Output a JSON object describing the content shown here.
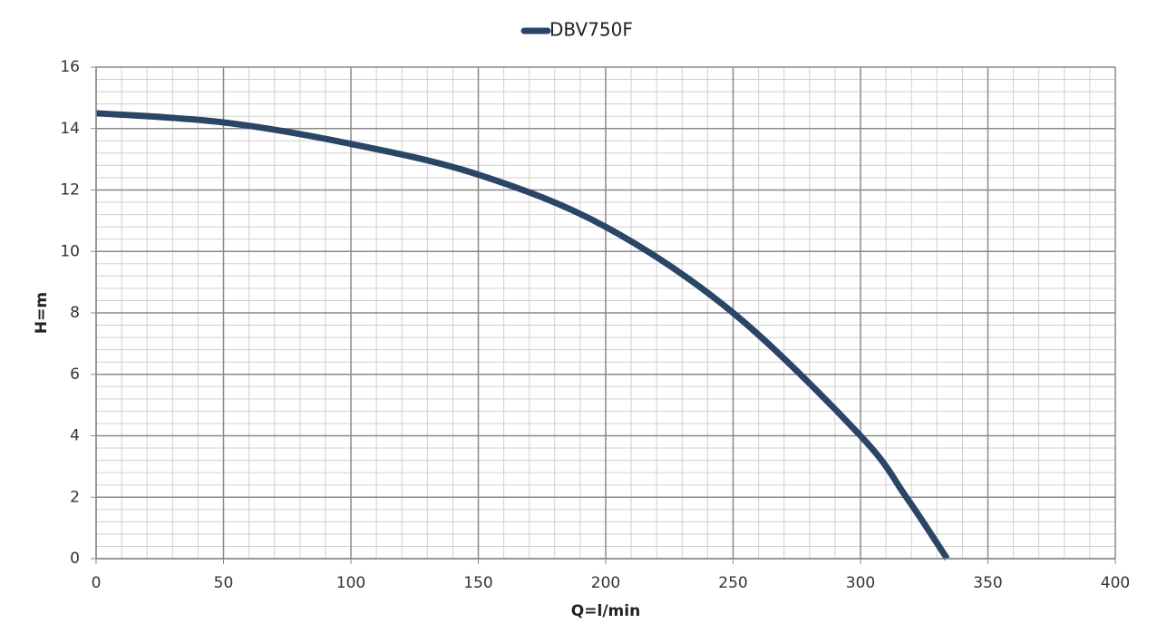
{
  "chart_data": {
    "type": "line",
    "series": [
      {
        "name": "DBV750F",
        "color": "#2b4566",
        "x": [
          0,
          50,
          100,
          150,
          200,
          250,
          300,
          318,
          334
        ],
        "values": [
          14.5,
          14.2,
          13.5,
          12.5,
          10.8,
          8,
          4,
          2,
          0
        ]
      }
    ],
    "x_label": "Q=l/min",
    "y_label": "H=m",
    "xlim": [
      0,
      400
    ],
    "xticks": [
      0,
      50,
      100,
      150,
      200,
      250,
      300,
      350,
      400
    ],
    "ylim": [
      0,
      16
    ],
    "yticks": [
      0,
      2,
      4,
      6,
      8,
      10,
      12,
      14,
      16
    ],
    "grid": true,
    "minor_grid_step": {
      "x": 10,
      "y": 0.4
    },
    "legend_position": "top"
  }
}
